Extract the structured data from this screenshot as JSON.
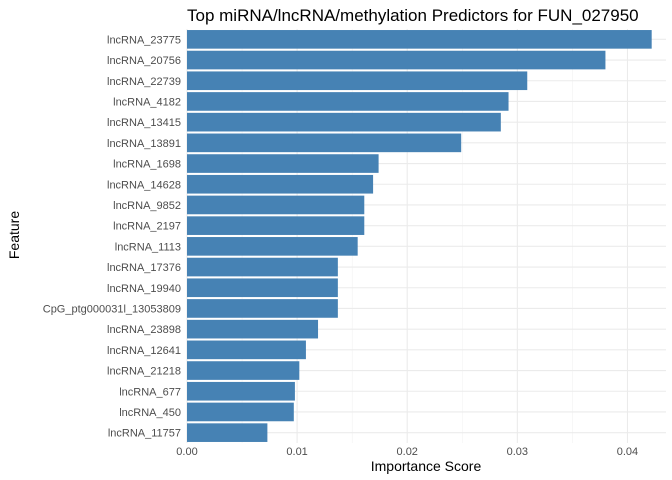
{
  "chart_data": {
    "type": "bar",
    "orientation": "horizontal",
    "title": "Top miRNA/lncRNA/methylation Predictors for FUN_027950",
    "xlabel": "Importance Score",
    "ylabel": "Feature",
    "xlim": [
      0,
      0.0435
    ],
    "x_ticks": [
      0.0,
      0.01,
      0.02,
      0.03,
      0.04
    ],
    "x_tick_labels": [
      "0.00",
      "0.01",
      "0.02",
      "0.03",
      "0.04"
    ],
    "grid": true,
    "bar_color": "#4682B4",
    "categories": [
      "lncRNA_23775",
      "lncRNA_20756",
      "lncRNA_22739",
      "lncRNA_4182",
      "lncRNA_13415",
      "lncRNA_13891",
      "lncRNA_1698",
      "lncRNA_14628",
      "lncRNA_9852",
      "lncRNA_2197",
      "lncRNA_1113",
      "lncRNA_17376",
      "lncRNA_19940",
      "CpG_ptg000031l_13053809",
      "lncRNA_23898",
      "lncRNA_12641",
      "lncRNA_21218",
      "lncRNA_677",
      "lncRNA_450",
      "lncRNA_11757"
    ],
    "values": [
      0.0422,
      0.038,
      0.0309,
      0.0292,
      0.0285,
      0.0249,
      0.0174,
      0.0169,
      0.0161,
      0.0161,
      0.0155,
      0.0137,
      0.0137,
      0.0137,
      0.0119,
      0.0108,
      0.0102,
      0.0098,
      0.0097,
      0.0073
    ]
  }
}
